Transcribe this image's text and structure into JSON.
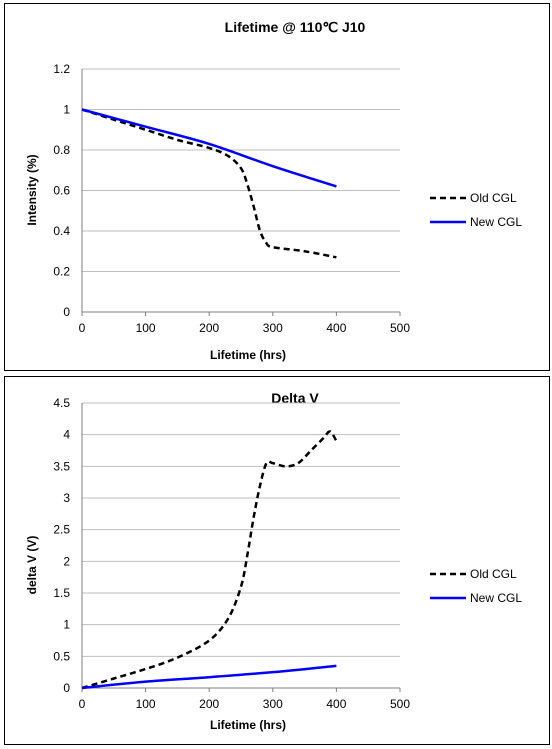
{
  "chart_data": [
    {
      "type": "line",
      "title": "Lifetime @ 110℃ J10",
      "xlabel": "Lifetime (hrs)",
      "ylabel": "Intensity (%)",
      "xlim": [
        0,
        500
      ],
      "ylim": [
        0,
        1.2
      ],
      "xticks": [
        "0",
        "100",
        "200",
        "300",
        "400",
        "500"
      ],
      "yticks": [
        "0",
        "0.2",
        "0.4",
        "0.6",
        "0.8",
        "1",
        "1.2"
      ],
      "grid": "horizontal",
      "legend_position": "right",
      "series": [
        {
          "name": "Old CGL",
          "style": "dashed",
          "color": "#000000",
          "x": [
            0,
            50,
            100,
            150,
            200,
            230,
            250,
            260,
            270,
            280,
            290,
            300,
            350,
            400
          ],
          "y": [
            1.0,
            0.95,
            0.9,
            0.85,
            0.81,
            0.77,
            0.71,
            0.63,
            0.52,
            0.4,
            0.34,
            0.32,
            0.3,
            0.27
          ]
        },
        {
          "name": "New CGL",
          "style": "solid",
          "color": "#0000ff",
          "x": [
            0,
            100,
            200,
            300,
            400
          ],
          "y": [
            1.0,
            0.915,
            0.83,
            0.72,
            0.62
          ]
        }
      ]
    },
    {
      "type": "line",
      "title": "Delta V",
      "xlabel": "Lifetime (hrs)",
      "ylabel": "delta V (V)",
      "xlim": [
        0,
        500
      ],
      "ylim": [
        0,
        4.5
      ],
      "xticks": [
        "0",
        "100",
        "200",
        "300",
        "400",
        "500"
      ],
      "yticks": [
        "0",
        "0.5",
        "1",
        "1.5",
        "2",
        "2.5",
        "3",
        "3.5",
        "4",
        "4.5"
      ],
      "grid": "horizontal",
      "legend_position": "right",
      "series": [
        {
          "name": "Old CGL",
          "style": "dashed",
          "color": "#000000",
          "x": [
            0,
            50,
            100,
            150,
            200,
            230,
            250,
            260,
            270,
            280,
            290,
            300,
            320,
            340,
            360,
            380,
            390,
            400
          ],
          "y": [
            0.0,
            0.15,
            0.3,
            0.48,
            0.75,
            1.1,
            1.6,
            2.1,
            2.7,
            3.2,
            3.55,
            3.55,
            3.5,
            3.55,
            3.75,
            3.95,
            4.05,
            3.9
          ]
        },
        {
          "name": "New CGL",
          "style": "solid",
          "color": "#0000ff",
          "x": [
            0,
            100,
            200,
            300,
            400
          ],
          "y": [
            0.0,
            0.1,
            0.17,
            0.25,
            0.35
          ]
        }
      ]
    }
  ]
}
